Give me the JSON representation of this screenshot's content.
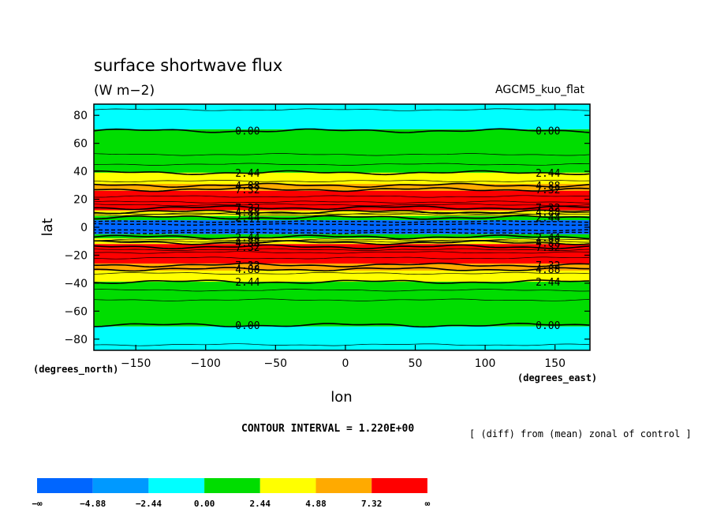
{
  "chart_data": {
    "type": "contour",
    "title": "surface shortwave flux",
    "units": "(W m−2)",
    "case_name": "AGCM5_kuo_flat",
    "xlabel": "lon",
    "ylabel": "lat",
    "x_unit_label": "(degrees_east)",
    "y_unit_label": "(degrees_north)",
    "xlim": [
      -180,
      175
    ],
    "ylim": [
      -88,
      88
    ],
    "x_ticks": [
      -150,
      -100,
      -50,
      0,
      50,
      100,
      150
    ],
    "x_tick_labels": [
      "−150",
      "−100",
      "−50",
      "0",
      "50",
      "100",
      "150"
    ],
    "y_ticks": [
      80,
      60,
      40,
      20,
      0,
      -20,
      -40,
      -60,
      -80
    ],
    "y_tick_labels": [
      "80",
      "60",
      "40",
      "20",
      "0",
      "−20",
      "−40",
      "−60",
      "−80"
    ],
    "contour_interval_text": "CONTOUR INTERVAL = 1.220E+00",
    "description": "[ (diff) from (mean) zonal of control ]",
    "color_levels": [
      {
        "label": "−∞",
        "color": "#0066ff"
      },
      {
        "label": "−4.88",
        "color": "#0099ff"
      },
      {
        "label": "−2.44",
        "color": "#00ffff"
      },
      {
        "label": "0.00",
        "color": "#00dd00"
      },
      {
        "label": "2.44",
        "color": "#ffff00"
      },
      {
        "label": "4.88",
        "color": "#ffaa00"
      },
      {
        "label": "7.32",
        "color": "#ff0000"
      },
      {
        "label": "∞",
        "color": ""
      }
    ],
    "bands": [
      {
        "lat_from": 70,
        "lat_to": 88,
        "color": "#00ffff"
      },
      {
        "lat_from": 39,
        "lat_to": 70,
        "color": "#00dd00"
      },
      {
        "lat_from": 31,
        "lat_to": 39,
        "color": "#ffff00"
      },
      {
        "lat_from": 26,
        "lat_to": 31,
        "color": "#ffaa00"
      },
      {
        "lat_from": 12,
        "lat_to": 26,
        "color": "#ff0000"
      },
      {
        "lat_from": 8,
        "lat_to": 12,
        "color": "#ffff00"
      },
      {
        "lat_from": 5,
        "lat_to": 8,
        "color": "#00dd00"
      },
      {
        "lat_from": -5,
        "lat_to": 5,
        "color": "#0066ff"
      },
      {
        "lat_from": -8,
        "lat_to": -5,
        "color": "#00dd00"
      },
      {
        "lat_from": -12,
        "lat_to": -8,
        "color": "#ffff00"
      },
      {
        "lat_from": -26,
        "lat_to": -12,
        "color": "#ff0000"
      },
      {
        "lat_from": -31,
        "lat_to": -26,
        "color": "#ffaa00"
      },
      {
        "lat_from": -39,
        "lat_to": -31,
        "color": "#ffff00"
      },
      {
        "lat_from": -71,
        "lat_to": -39,
        "color": "#00dd00"
      },
      {
        "lat_from": -88,
        "lat_to": -71,
        "color": "#00ffff"
      }
    ],
    "contour_lines": [
      {
        "lat": 69,
        "label": "0.00"
      },
      {
        "lat": 39,
        "label": "2.44"
      },
      {
        "lat": 30,
        "label": "4.88"
      },
      {
        "lat": 27,
        "label": "7.32"
      },
      {
        "lat": 14,
        "label": "7.32"
      },
      {
        "lat": 11,
        "label": "4.88"
      },
      {
        "lat": 7,
        "label": "2.44"
      },
      {
        "lat": -7,
        "label": "2.44"
      },
      {
        "lat": -11,
        "label": "4.88"
      },
      {
        "lat": -14,
        "label": "7.32"
      },
      {
        "lat": -27,
        "label": "7.32"
      },
      {
        "lat": -30,
        "label": "4.88"
      },
      {
        "lat": -39,
        "label": "2.44"
      },
      {
        "lat": -70,
        "label": "0.00"
      }
    ],
    "label_lons": [
      -70,
      145
    ]
  }
}
